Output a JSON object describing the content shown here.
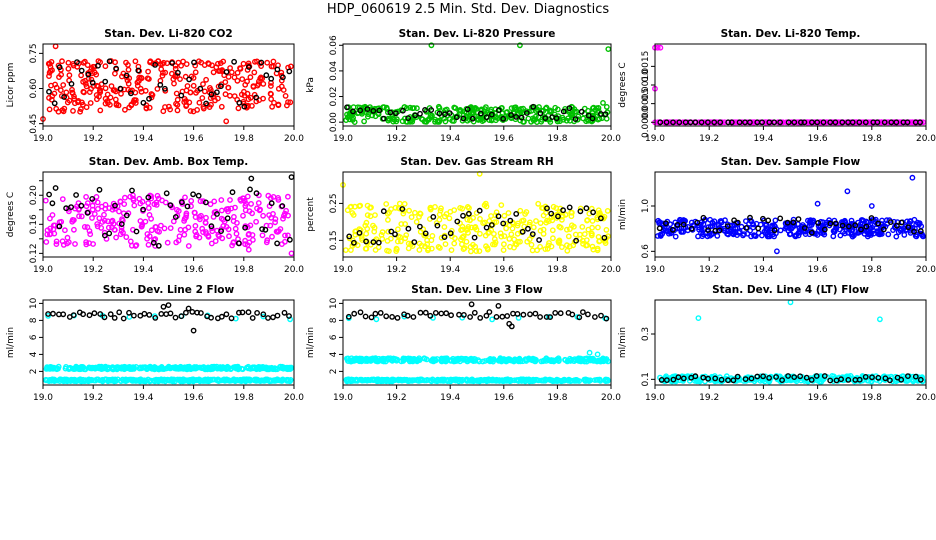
{
  "figure": {
    "title": "HDP_060619  2.5 Min. Std. Dev. Diagnostics"
  },
  "chart_data": [
    {
      "type": "scatter",
      "title": "Stan. Dev. Li-820 CO2",
      "ylabel": "Licor ppm",
      "xlim": [
        19.0,
        20.0
      ],
      "ylim": [
        0.44,
        0.79
      ],
      "xticks": [
        19.0,
        19.2,
        19.4,
        19.6,
        19.8,
        20.0
      ],
      "xtick_labels": [
        "19.0",
        "19.2",
        "19.4",
        "19.6",
        "19.8",
        "20.0"
      ],
      "yticks": [
        0.45,
        0.6,
        0.75
      ],
      "ytick_labels": [
        "0.45",
        "0.60",
        "0.75"
      ],
      "series": [
        {
          "name": "bulk",
          "color": "#ff0000",
          "kind": "band",
          "n": 340,
          "low": 0.5,
          "high": 0.72,
          "x": [
            19.05,
            19.0,
            19.73
          ],
          "y": [
            0.78,
            0.47,
            0.46
          ]
        },
        {
          "name": "hourly",
          "color": "#000000",
          "kind": "sparse",
          "n": 44,
          "low": 0.52,
          "high": 0.72
        }
      ]
    },
    {
      "type": "scatter",
      "title": "Stan. Dev. Li-820 Pressure",
      "ylabel": "kPa",
      "xlim": [
        19.0,
        20.0
      ],
      "ylim": [
        -0.003,
        0.061
      ],
      "xticks": [
        19.0,
        19.2,
        19.4,
        19.6,
        19.8,
        20.0
      ],
      "xtick_labels": [
        "19.0",
        "19.2",
        "19.4",
        "19.6",
        "19.8",
        "20.0"
      ],
      "yticks": [
        0.0,
        0.02,
        0.04,
        0.06
      ],
      "ytick_labels": [
        "0.00",
        "0.02",
        "0.04",
        "0.06"
      ],
      "series": [
        {
          "name": "bulk",
          "color": "#00c000",
          "kind": "band",
          "n": 320,
          "low": 0.0,
          "high": 0.012,
          "x": [
            19.33,
            19.66,
            19.99,
            19.97
          ],
          "y": [
            0.06,
            0.06,
            0.057,
            0.015
          ]
        },
        {
          "name": "hourly",
          "color": "#000000",
          "kind": "sparse",
          "n": 44,
          "low": 0.002,
          "high": 0.012
        }
      ]
    },
    {
      "type": "scatter",
      "title": "Stan. Dev. Li-820 Temp.",
      "ylabel": "degrees C",
      "xlim": [
        19.0,
        20.0
      ],
      "ylim": [
        -0.0001,
        0.0021
      ],
      "xticks": [
        19.0,
        19.2,
        19.4,
        19.6,
        19.8,
        20.0
      ],
      "xtick_labels": [
        "19.0",
        "19.2",
        "19.4",
        "19.6",
        "19.8",
        "20.0"
      ],
      "yticks": [
        0.0,
        0.0005,
        0.001,
        0.0015
      ],
      "ytick_labels": [
        "0.0000",
        "0.0005",
        "0.0010",
        "0.0015"
      ],
      "series": [
        {
          "name": "bulk",
          "color": "#ff00ff",
          "kind": "line",
          "n": 300,
          "low": 0.0,
          "high": 0.0,
          "x": [
            19.0,
            19.01,
            19.02,
            19.0,
            19.0
          ],
          "y": [
            0.002,
            0.002,
            0.002,
            0.0009,
            0.0
          ]
        },
        {
          "name": "hourly",
          "color": "#000000",
          "kind": "sparse",
          "n": 44,
          "low": 0.0,
          "high": 0.0
        }
      ]
    },
    {
      "type": "scatter",
      "title": "Stan. Dev. Amb. Box Temp.",
      "ylabel": "degrees C",
      "xlim": [
        19.0,
        20.0
      ],
      "ylim": [
        0.115,
        0.232
      ],
      "xticks": [
        19.0,
        19.2,
        19.4,
        19.6,
        19.8,
        20.0
      ],
      "xtick_labels": [
        "19.0",
        "19.2",
        "19.4",
        "19.6",
        "19.8",
        "20.0"
      ],
      "yticks": [
        0.12,
        0.16,
        0.2
      ],
      "ytick_labels": [
        "0.12",
        "0.16",
        "0.20"
      ],
      "yticks_minor": [
        0.14,
        0.18,
        0.22
      ],
      "series": [
        {
          "name": "bulk",
          "color": "#ff00ff",
          "kind": "band",
          "n": 300,
          "low": 0.13,
          "high": 0.2,
          "x": [
            19.99,
            19.82
          ],
          "y": [
            0.12,
            0.125
          ]
        },
        {
          "name": "hourly",
          "color": "#000000",
          "kind": "sparse",
          "n": 44,
          "low": 0.13,
          "high": 0.21,
          "x": [
            19.05,
            19.99,
            19.83
          ],
          "y": [
            0.21,
            0.225,
            0.223
          ]
        }
      ]
    },
    {
      "type": "scatter",
      "title": "Stan. Dev. Gas Stream RH",
      "ylabel": "percent",
      "xlim": [
        19.0,
        20.0
      ],
      "ylim": [
        0.105,
        0.335
      ],
      "xticks": [
        19.0,
        19.2,
        19.4,
        19.6,
        19.8,
        20.0
      ],
      "xtick_labels": [
        "19.0",
        "19.2",
        "19.4",
        "19.6",
        "19.8",
        "20.0"
      ],
      "yticks": [
        0.15,
        0.25
      ],
      "ytick_labels": [
        "0.15",
        "0.25"
      ],
      "series": [
        {
          "name": "bulk",
          "color": "#ffff00",
          "kind": "band",
          "n": 340,
          "low": 0.12,
          "high": 0.25,
          "x": [
            19.51,
            19.0
          ],
          "y": [
            0.33,
            0.3
          ]
        },
        {
          "name": "hourly",
          "color": "#000000",
          "kind": "sparse",
          "n": 44,
          "low": 0.14,
          "high": 0.24
        }
      ]
    },
    {
      "type": "scatter",
      "title": "Stan. Dev. Sample Flow",
      "ylabel": "ml/min",
      "xlim": [
        19.0,
        20.0
      ],
      "ylim": [
        0.55,
        1.3
      ],
      "xticks": [
        19.0,
        19.2,
        19.4,
        19.6,
        19.8,
        20.0
      ],
      "xtick_labels": [
        "19.0",
        "19.2",
        "19.4",
        "19.6",
        "19.8",
        "20.0"
      ],
      "yticks": [
        0.6,
        1.0
      ],
      "ytick_labels": [
        "0.6",
        "1.0"
      ],
      "series": [
        {
          "name": "bulk",
          "color": "#0000ff",
          "kind": "band",
          "n": 380,
          "low": 0.73,
          "high": 0.88,
          "x": [
            19.95,
            19.71,
            19.6,
            19.8,
            19.45
          ],
          "y": [
            1.25,
            1.13,
            1.02,
            1.0,
            0.6
          ]
        },
        {
          "name": "hourly",
          "color": "#000000",
          "kind": "sparse",
          "n": 44,
          "low": 0.76,
          "high": 0.9
        }
      ]
    },
    {
      "type": "scatter",
      "title": "Stan. Dev. Line 2 Flow",
      "ylabel": "ml/min",
      "xlim": [
        19.0,
        20.0
      ],
      "ylim": [
        0.4,
        10.4
      ],
      "xticks": [
        19.0,
        19.2,
        19.4,
        19.6,
        19.8,
        20.0
      ],
      "xtick_labels": [
        "19.0",
        "19.2",
        "19.4",
        "19.6",
        "19.8",
        "20.0"
      ],
      "yticks": [
        2,
        4,
        6,
        8,
        10
      ],
      "ytick_labels": [
        "2",
        "4",
        "6",
        "8",
        "10"
      ],
      "series": [
        {
          "name": "band-upper",
          "color": "#00ffff",
          "kind": "line",
          "n": 320,
          "low": 2.2,
          "high": 2.6
        },
        {
          "name": "band-lower",
          "color": "#00ffff",
          "kind": "line",
          "n": 320,
          "low": 0.8,
          "high": 1.1
        },
        {
          "name": "hourly-cyan",
          "color": "#00ffff",
          "kind": "sparse",
          "n": 10,
          "low": 8.0,
          "high": 8.6
        },
        {
          "name": "hourly",
          "color": "#000000",
          "kind": "sparse",
          "n": 48,
          "low": 8.2,
          "high": 9.0,
          "x": [
            19.48,
            19.5,
            19.58,
            19.6
          ],
          "y": [
            9.6,
            9.8,
            9.4,
            6.8
          ]
        }
      ]
    },
    {
      "type": "scatter",
      "title": "Stan. Dev. Line 3 Flow",
      "ylabel": "ml/min",
      "xlim": [
        19.0,
        20.0
      ],
      "ylim": [
        0.4,
        10.4
      ],
      "xticks": [
        19.0,
        19.2,
        19.4,
        19.6,
        19.8,
        20.0
      ],
      "xtick_labels": [
        "19.0",
        "19.2",
        "19.4",
        "19.6",
        "19.8",
        "20.0"
      ],
      "yticks": [
        2,
        4,
        6,
        8,
        10
      ],
      "ytick_labels": [
        "2",
        "4",
        "6",
        "8",
        "10"
      ],
      "series": [
        {
          "name": "band-upper",
          "color": "#00ffff",
          "kind": "line",
          "n": 320,
          "low": 3.1,
          "high": 3.6,
          "x": [
            19.92,
            19.95
          ],
          "y": [
            4.2,
            4.0
          ]
        },
        {
          "name": "band-lower",
          "color": "#00ffff",
          "kind": "line",
          "n": 320,
          "low": 0.8,
          "high": 1.1
        },
        {
          "name": "hourly-cyan",
          "color": "#00ffff",
          "kind": "sparse",
          "n": 10,
          "low": 8.0,
          "high": 8.6
        },
        {
          "name": "hourly",
          "color": "#000000",
          "kind": "sparse",
          "n": 48,
          "low": 8.2,
          "high": 9.0,
          "x": [
            19.48,
            19.58,
            19.63,
            19.62
          ],
          "y": [
            9.9,
            9.7,
            7.3,
            7.6
          ]
        }
      ]
    },
    {
      "type": "scatter",
      "title": "Stan. Dev. Line 4 (LT) Flow",
      "ylabel": "ml/min",
      "xlim": [
        19.0,
        20.0
      ],
      "ylim": [
        0.075,
        0.45
      ],
      "xticks": [
        19.0,
        19.2,
        19.4,
        19.6,
        19.8,
        20.0
      ],
      "xtick_labels": [
        "19.0",
        "19.2",
        "19.4",
        "19.6",
        "19.8",
        "20.0"
      ],
      "yticks": [
        0.1,
        0.3
      ],
      "ytick_labels": [
        "0.1",
        "0.3"
      ],
      "series": [
        {
          "name": "bulk",
          "color": "#00ffff",
          "kind": "band",
          "n": 320,
          "low": 0.09,
          "high": 0.115,
          "x": [
            19.5,
            19.16,
            19.83
          ],
          "y": [
            0.44,
            0.37,
            0.365
          ]
        },
        {
          "name": "hourly",
          "color": "#000000",
          "kind": "sparse",
          "n": 44,
          "low": 0.095,
          "high": 0.115
        }
      ]
    }
  ]
}
